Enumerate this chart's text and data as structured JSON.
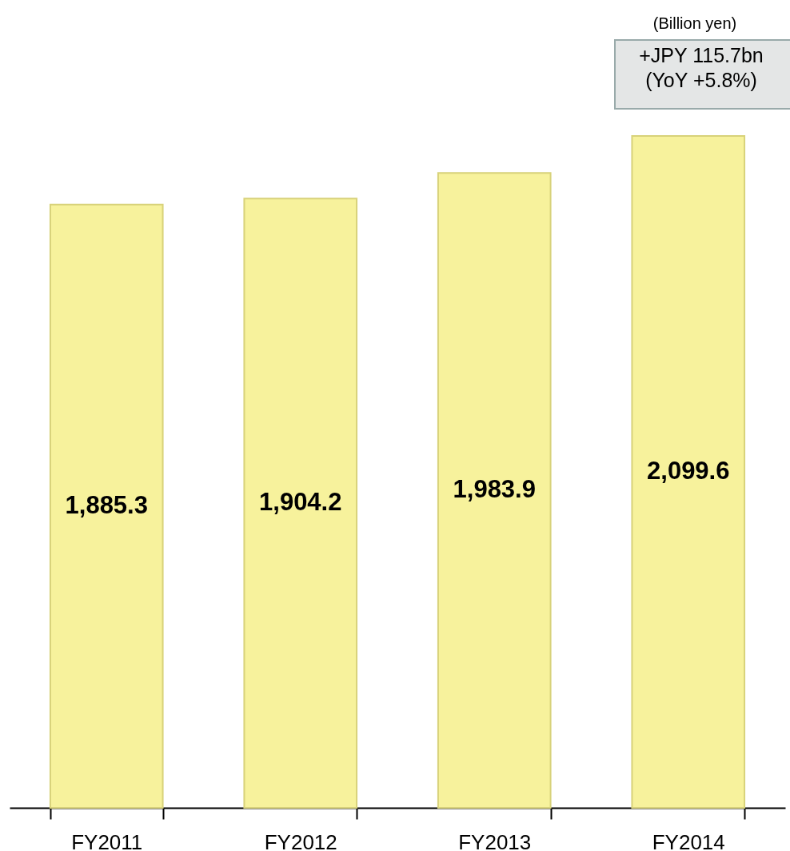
{
  "chart_data": {
    "type": "bar",
    "categories": [
      "FY2011",
      "FY2012",
      "FY2013",
      "FY2014"
    ],
    "values": [
      1885.3,
      1904.2,
      1983.9,
      2099.6
    ],
    "value_labels": [
      "1,885.3",
      "1,904.2",
      "1,983.9",
      "2,099.6"
    ],
    "color": "#f7f29c",
    "tick_labels": "x",
    "grid": false,
    "annotations": [
      "(Billion yen)",
      "+JPY 115.7bn\n(YoY +5.8%)"
    ]
  }
}
